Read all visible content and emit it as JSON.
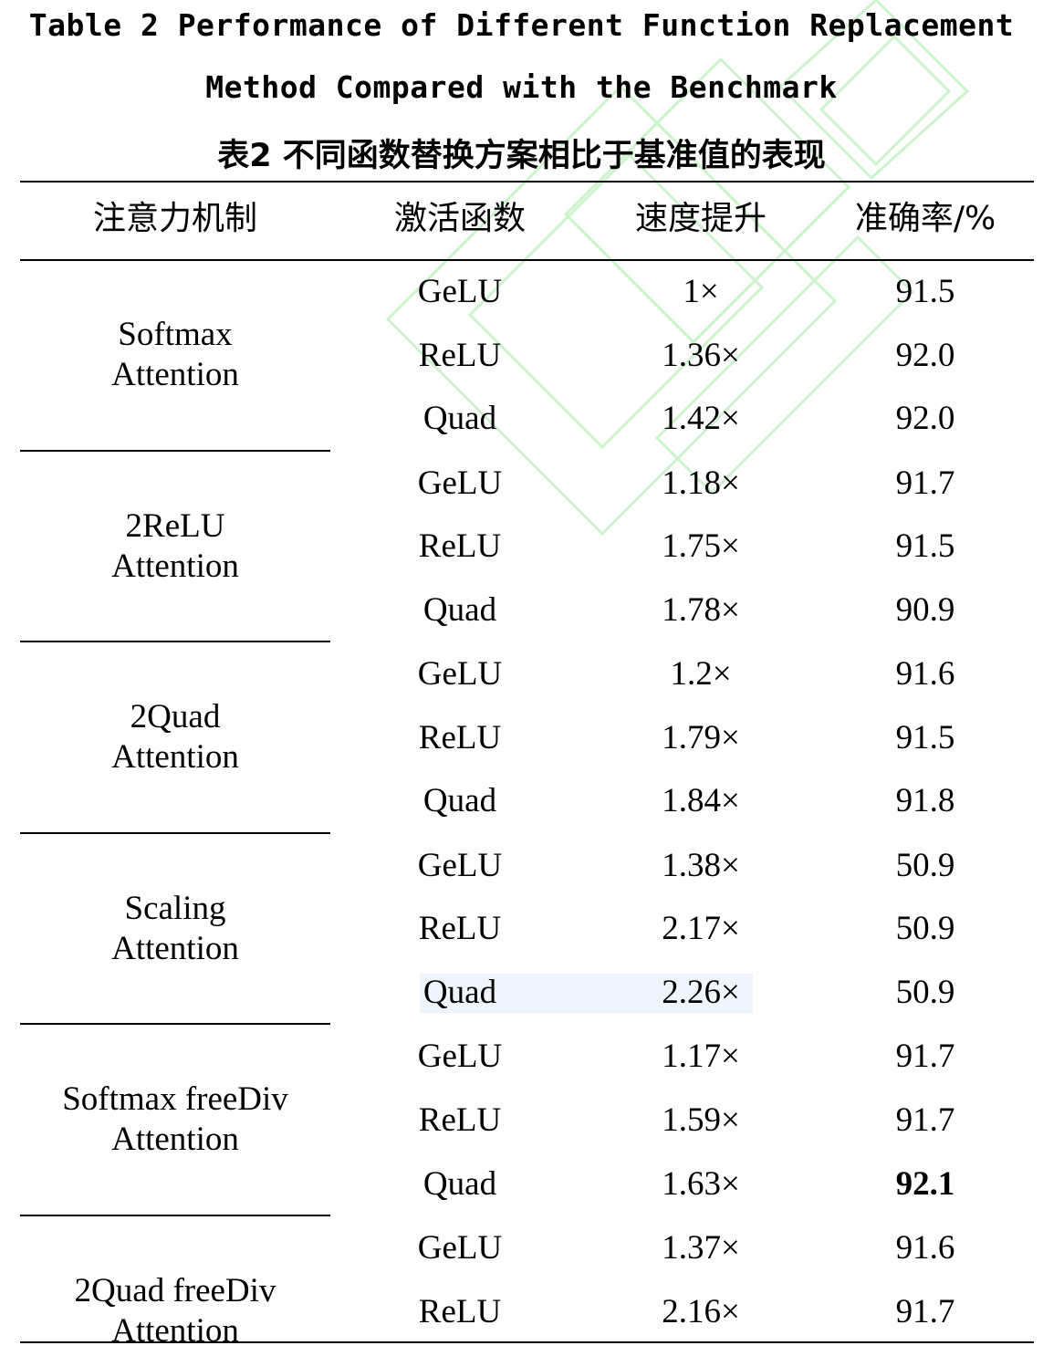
{
  "caption": {
    "en_line1": "Table 2 Performance of Different Function Replacement",
    "en_line2": "Method Compared with the Benchmark",
    "zh": "表2 不同函数替换方案相比于基准值的表现"
  },
  "headers": [
    "注意力机制",
    "激活函数",
    "速度提升",
    "准确率/%"
  ],
  "groups": [
    {
      "mechanism": [
        "Softmax",
        "Attention"
      ],
      "rows": [
        {
          "activation": "GeLU",
          "speedup": "1×",
          "accuracy": "91.5"
        },
        {
          "activation": "ReLU",
          "speedup": "1.36×",
          "accuracy": "92.0"
        },
        {
          "activation": "Quad",
          "speedup": "1.42×",
          "accuracy": "92.0"
        }
      ]
    },
    {
      "mechanism": [
        "2ReLU",
        "Attention"
      ],
      "rows": [
        {
          "activation": "GeLU",
          "speedup": "1.18×",
          "accuracy": "91.7"
        },
        {
          "activation": "ReLU",
          "speedup": "1.75×",
          "accuracy": "91.5"
        },
        {
          "activation": "Quad",
          "speedup": "1.78×",
          "accuracy": "90.9"
        }
      ]
    },
    {
      "mechanism": [
        "2Quad",
        "Attention"
      ],
      "rows": [
        {
          "activation": "GeLU",
          "speedup": "1.2×",
          "accuracy": "91.6"
        },
        {
          "activation": "ReLU",
          "speedup": "1.79×",
          "accuracy": "91.5"
        },
        {
          "activation": "Quad",
          "speedup": "1.84×",
          "accuracy": "91.8"
        }
      ]
    },
    {
      "mechanism": [
        "Scaling",
        "Attention"
      ],
      "rows": [
        {
          "activation": "GeLU",
          "speedup": "1.38×",
          "accuracy": "50.9"
        },
        {
          "activation": "ReLU",
          "speedup": "2.17×",
          "accuracy": "50.9"
        },
        {
          "activation": "Quad",
          "speedup": "2.26×",
          "accuracy": "50.9"
        }
      ]
    },
    {
      "mechanism": [
        "Softmax freeDiv",
        "Attention"
      ],
      "rows": [
        {
          "activation": "GeLU",
          "speedup": "1.17×",
          "accuracy": "91.7"
        },
        {
          "activation": "ReLU",
          "speedup": "1.59×",
          "accuracy": "91.7"
        },
        {
          "activation": "Quad",
          "speedup": "1.63×",
          "accuracy": "92.1",
          "bold": true
        }
      ]
    },
    {
      "mechanism": [
        "2Quad freeDiv",
        "Attention"
      ],
      "rows": [
        {
          "activation": "GeLU",
          "speedup": "1.37×",
          "accuracy": "91.6"
        },
        {
          "activation": "ReLU",
          "speedup": "2.16×",
          "accuracy": "91.7"
        }
      ]
    }
  ]
}
